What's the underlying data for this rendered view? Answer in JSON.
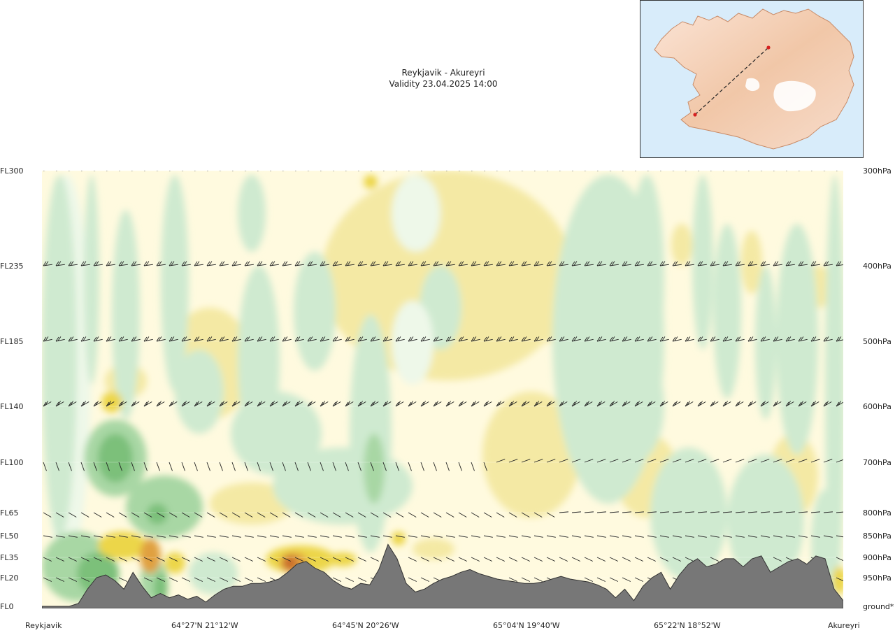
{
  "header": {
    "route": "Reykjavik - Akureyri",
    "validity": "Validity 23.04.2025 14:00"
  },
  "inset_map": {
    "start_marker_color": "#d62020",
    "end_marker_color": "#d62020",
    "route_line_color": "#222222"
  },
  "chart_data": {
    "type": "cross-section",
    "title": "Reykjavik - Akureyri",
    "subtitle": "Validity 23.04.2025 14:00",
    "left_axis_levels": [
      {
        "label": "FL300",
        "fl": 300
      },
      {
        "label": "FL235",
        "fl": 235
      },
      {
        "label": "FL185",
        "fl": 185
      },
      {
        "label": "FL140",
        "fl": 140
      },
      {
        "label": "FL100",
        "fl": 100
      },
      {
        "label": "FL65",
        "fl": 65
      },
      {
        "label": "FL50",
        "fl": 50
      },
      {
        "label": "FL35",
        "fl": 35
      },
      {
        "label": "FL20",
        "fl": 20
      },
      {
        "label": "FL0",
        "fl": 0
      }
    ],
    "right_axis_levels": [
      "300hPa",
      "400hPa",
      "500hPa",
      "600hPa",
      "700hPa",
      "800hPa",
      "850hPa",
      "900hPa",
      "950hPa",
      "ground*"
    ],
    "x_labels": [
      "Reykjavik",
      "64°27'N 21°12'W",
      "64°45'N 20°26'W",
      "65°04'N 19°40'W",
      "65°22'N 18°52'W",
      "Akureyri"
    ],
    "terrain_fl": [
      0,
      0,
      0,
      0,
      2,
      12,
      20,
      22,
      18,
      12,
      24,
      14,
      6,
      9,
      6,
      8,
      5,
      7,
      3,
      8,
      12,
      14,
      14,
      16,
      16,
      17,
      19,
      24,
      30,
      32,
      27,
      24,
      18,
      14,
      12,
      16,
      15,
      26,
      44,
      34,
      16,
      10,
      12,
      16,
      19,
      21,
      24,
      26,
      23,
      21,
      19,
      18,
      17,
      16,
      16,
      17,
      19,
      21,
      19,
      18,
      17,
      15,
      12,
      6,
      12,
      4,
      14,
      20,
      24,
      12,
      22,
      30,
      34,
      28,
      30,
      34,
      34,
      28,
      34,
      36,
      24,
      28,
      32,
      34,
      30,
      36,
      34,
      12,
      4
    ],
    "wind_levels_fl": [
      300,
      235,
      185,
      140,
      100,
      65,
      50,
      35,
      20
    ],
    "field_palette": {
      "strong_negative": "#7cc07a",
      "moderate_negative": "#a8d7a4",
      "weak_negative": "#cfead0",
      "near_zero_cool": "#eef8e9",
      "near_zero_warm": "#fffadf",
      "weak_positive": "#f4e9a4",
      "moderate_positive": "#ecd64a",
      "strong_positive": "#e0a040",
      "max_positive": "#c86c2c",
      "terrain": "#777777"
    }
  }
}
